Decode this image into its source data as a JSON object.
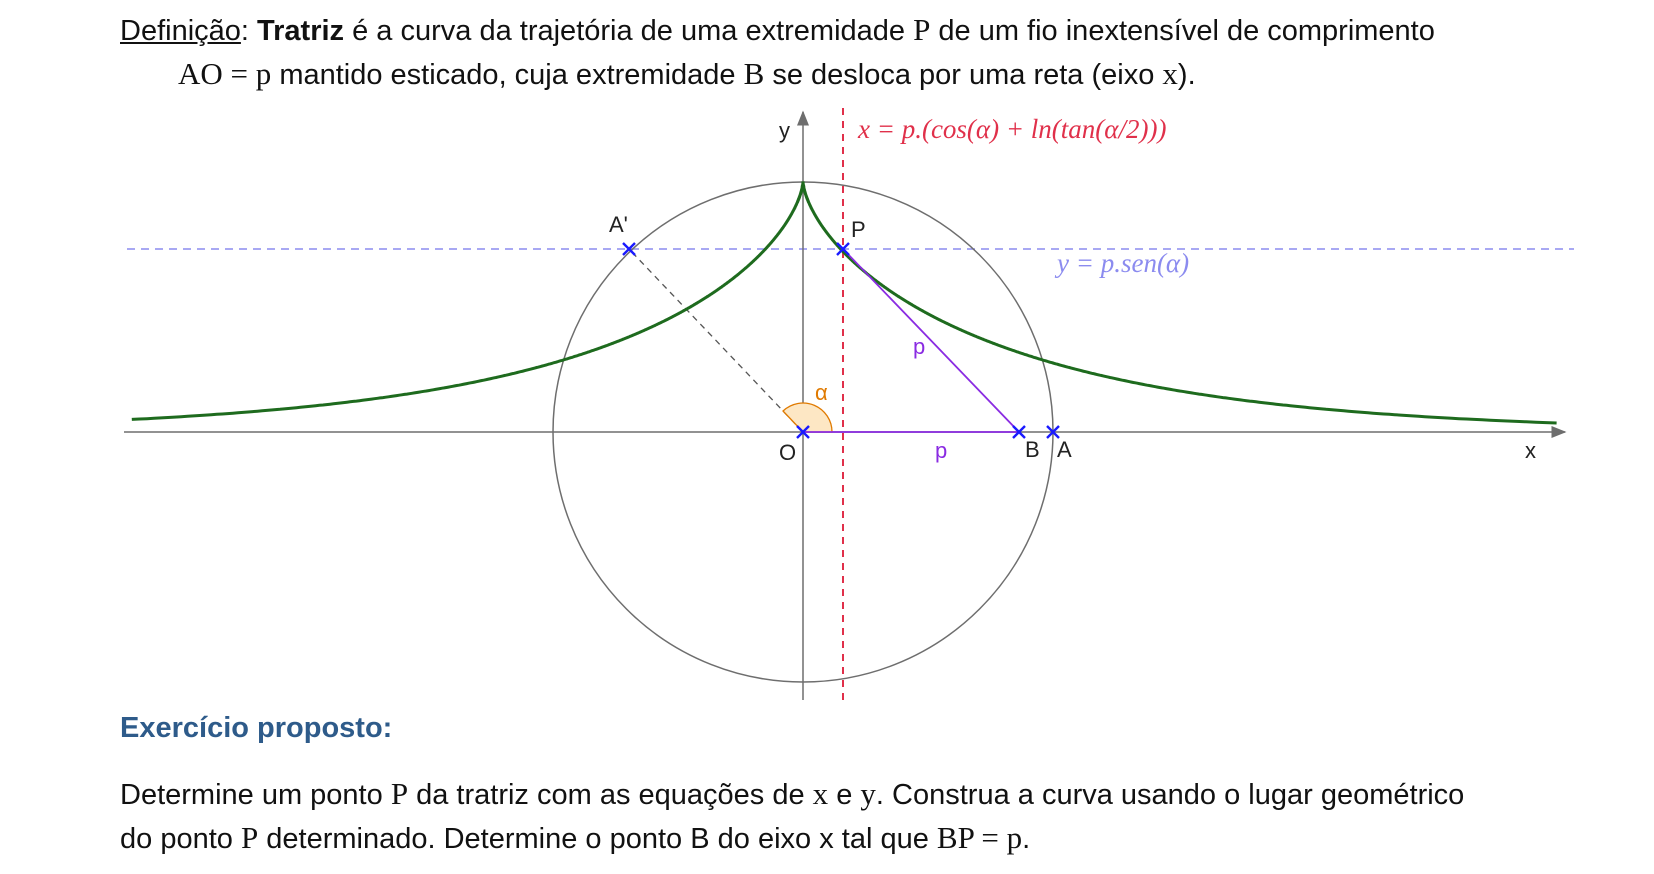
{
  "definition": {
    "term_label": "Definição",
    "colon": ":",
    "name": "Tratriz",
    "line1_text": " é a curva da trajetória de uma extremidade ",
    "point_P": "P",
    "line1_end": " de um fio inextensível de comprimento",
    "ao_eq_p": "AO = p",
    "line2_text": " mantido esticado, cuja extremidade ",
    "point_B": "B",
    "line2_mid": " se desloca por uma reta (eixo ",
    "axis_x": "x",
    "line2_end": ")."
  },
  "figure": {
    "labels": {
      "y_axis": "y",
      "x_axis": "x",
      "O": "O",
      "P": "P",
      "A_prime": "A'",
      "B": "B",
      "A": "A",
      "alpha": "α",
      "p_segment_PB": "p",
      "p_segment_OB": "p"
    },
    "equations": {
      "x_eq": "x = p.(cos(α) + ln(tan(α/2)))",
      "y_eq": "y = p.sen(α)"
    },
    "colors": {
      "tractrix": "#1e6b1e",
      "circle": "#6e6e6e",
      "axes": "#6e6e6e",
      "x_line": "#e0304a",
      "y_line": "#8b8bef",
      "segments": "#8a2be2",
      "points": "#1a1aff",
      "angle_fill": "#fde7c4",
      "angle_stroke": "#e07a00"
    }
  },
  "exercise": {
    "title": "Exercício proposto:",
    "line1_a": "Determine um ponto ",
    "point_P": "P",
    "line1_b": " da tratriz com as equações de ",
    "x": "x",
    "e": " e ",
    "y": "y",
    "line1_c": ". Construa a curva usando o lugar geométrico",
    "line2_a": "do ponto ",
    "point_P2": "P",
    "line2_b": " determinado. Determine o ponto B do eixo x tal que ",
    "bp_eq_p": "BP = p",
    "line2_end": "."
  }
}
